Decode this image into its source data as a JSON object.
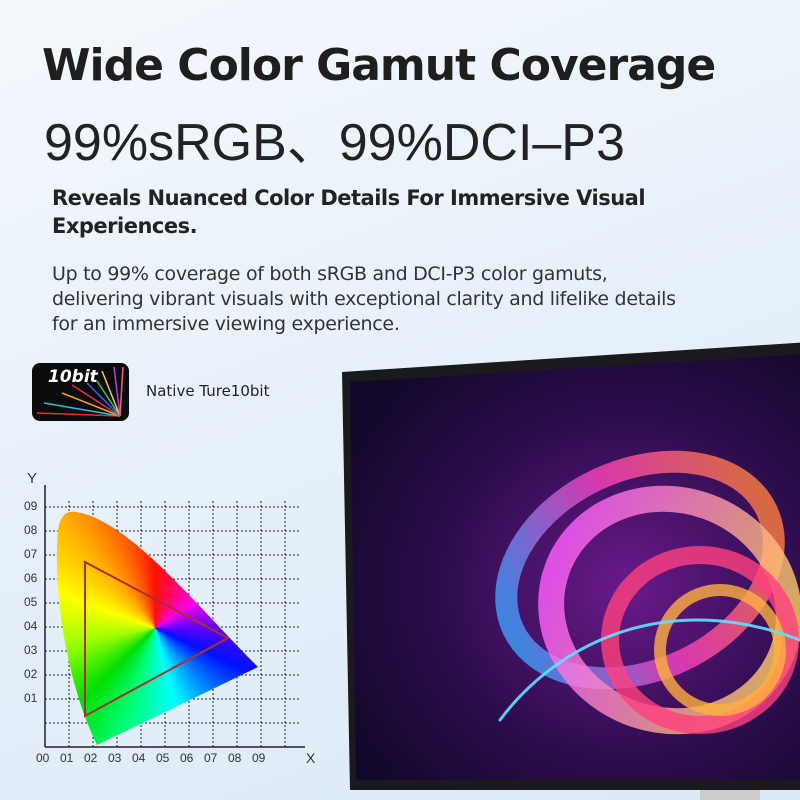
{
  "header": {
    "title": "Wide Color Gamut Coverage",
    "spec": "99%sRGB、99%DCI–P3"
  },
  "subtitle": "Reveals Nuanced Color Details For Immersive Visual Experiences.",
  "description": "Up to 99% coverage of both sRGB and DCI-P3 color gamuts, delivering vibrant visuals with exceptional clarity and lifelike details for an immersive viewing experience.",
  "badge": {
    "text": "10bit",
    "label": "Native Ture10bit"
  },
  "chart": {
    "y_axis_label": "Y",
    "x_axis_label": "X",
    "x_ticks": [
      "00",
      "01",
      "02",
      "03",
      "04",
      "05",
      "06",
      "07",
      "08",
      "09"
    ],
    "y_ticks": [
      "09",
      "08",
      "07",
      "06",
      "05",
      "04",
      "03",
      "02",
      "01"
    ],
    "triangle_color": "#b03030"
  }
}
